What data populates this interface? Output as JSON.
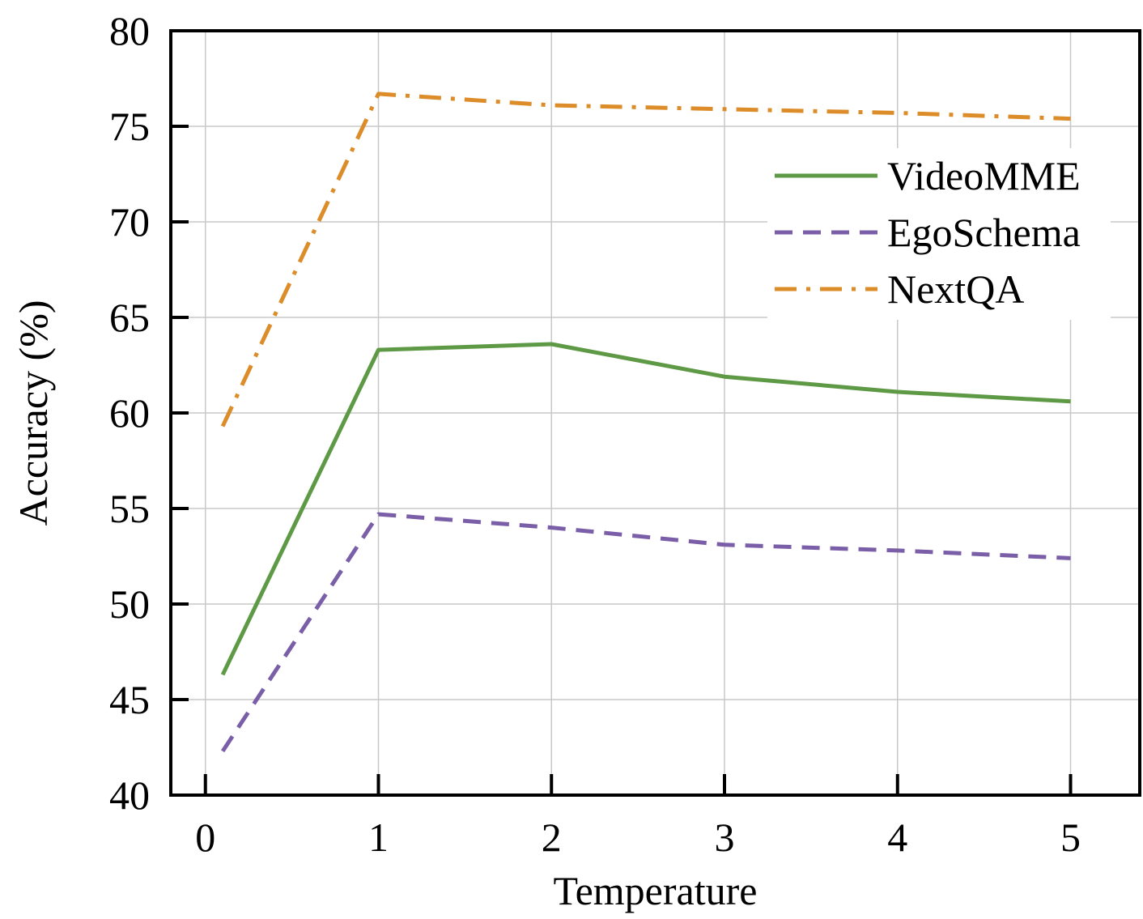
{
  "chart_data": {
    "type": "line",
    "title": "",
    "xlabel": "Temperature",
    "ylabel": "Accuracy (%)",
    "xlim": [
      -0.2,
      5.4
    ],
    "ylim": [
      40,
      80
    ],
    "xticks": [
      0,
      1,
      2,
      3,
      4,
      5
    ],
    "yticks": [
      40,
      45,
      50,
      55,
      60,
      65,
      70,
      75,
      80
    ],
    "grid": true,
    "legend_position": "upper-right",
    "series": [
      {
        "name": "VideoMME",
        "color": "#5e9a46",
        "style": "solid",
        "x": [
          0.1,
          1,
          2,
          3,
          4,
          5
        ],
        "y": [
          46.3,
          63.3,
          63.6,
          61.9,
          61.1,
          60.6
        ]
      },
      {
        "name": "EgoSchema",
        "color": "#7a5fa8",
        "style": "dashed",
        "x": [
          0.1,
          1,
          2,
          3,
          4,
          5
        ],
        "y": [
          42.3,
          54.7,
          54.0,
          53.1,
          52.8,
          52.4
        ]
      },
      {
        "name": "NextQA",
        "color": "#dc8c28",
        "style": "dashdot",
        "x": [
          0.1,
          1,
          2,
          3,
          4,
          5
        ],
        "y": [
          59.3,
          76.7,
          76.1,
          75.9,
          75.7,
          75.4
        ]
      }
    ]
  }
}
